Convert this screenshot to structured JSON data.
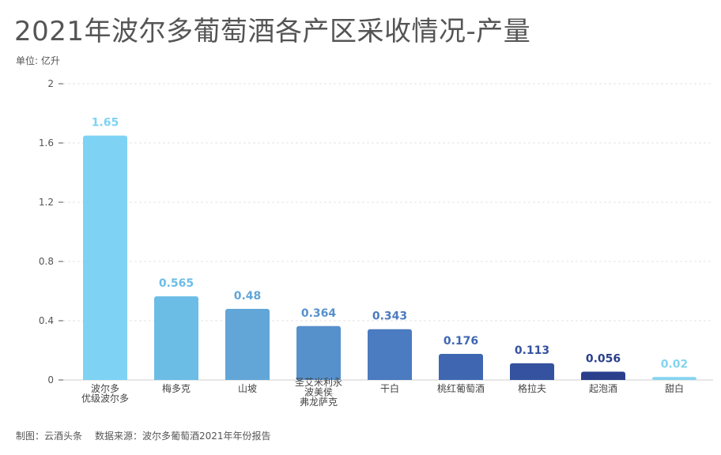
{
  "chart_data": {
    "type": "bar",
    "title": "2021年波尔多葡萄酒各产区采收情况-产量",
    "unit_label": "单位: 亿升",
    "categories": [
      [
        "波尔多",
        "优级波尔多"
      ],
      [
        "梅多克"
      ],
      [
        "山坡"
      ],
      [
        "圣艾米利永",
        "波美侯",
        "弗龙萨克"
      ],
      [
        "干白"
      ],
      [
        "桃红葡萄酒"
      ],
      [
        "格拉夫"
      ],
      [
        "起泡酒"
      ],
      [
        "甜白"
      ]
    ],
    "values": [
      1.65,
      0.565,
      0.48,
      0.364,
      0.343,
      0.176,
      0.113,
      0.056,
      0.02
    ],
    "value_labels": [
      "1.65",
      "0.565",
      "0.48",
      "0.364",
      "0.343",
      "0.176",
      "0.113",
      "0.056",
      "0.02"
    ],
    "colors": [
      "#7ed3f4",
      "#6cbde6",
      "#62a6d8",
      "#5791cc",
      "#4b7bc0",
      "#3f67b1",
      "#34529f",
      "#2a3f8c",
      "#84d4ef"
    ],
    "ylim": [
      0,
      2
    ],
    "yticks": [
      0,
      0.4,
      0.8,
      1.2,
      1.6,
      2
    ],
    "ytick_labels": [
      "0",
      "0.4",
      "0.8",
      "1.2",
      "1.6",
      "2"
    ],
    "grid": true,
    "legend": "none"
  },
  "footer": {
    "maker": "制图：云酒头条",
    "source": "数据来源：波尔多葡萄酒2021年年份报告"
  }
}
